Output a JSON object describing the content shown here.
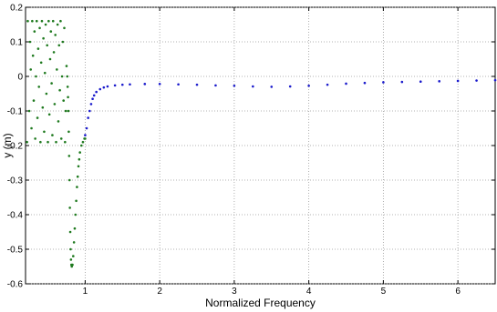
{
  "chart_data": {
    "type": "scatter",
    "title": "",
    "xlabel": "Normalized Frequency",
    "ylabel": "y (m)",
    "xlim": [
      0.2,
      6.5
    ],
    "ylim": [
      -0.6,
      0.2
    ],
    "xticks": [
      1,
      2,
      3,
      4,
      5,
      6
    ],
    "xtick_labels": [
      "1",
      "2",
      "3",
      "4",
      "5",
      "6"
    ],
    "yticks": [
      0.2,
      0.1,
      0,
      -0.1,
      -0.2,
      -0.3,
      -0.4,
      -0.5,
      -0.6
    ],
    "ytick_labels": [
      "0.2",
      "0.1",
      "0",
      "-0.1",
      "-0.2",
      "-0.3",
      "-0.4",
      "-0.5",
      "-0.6"
    ],
    "grid": true,
    "legend": "none",
    "series": [
      {
        "color": "#1f7a1f",
        "description": "green markers (low-frequency chaotic band and resonance dip)",
        "points": [
          [
            0.22,
            -0.19
          ],
          [
            0.23,
            0.16
          ],
          [
            0.25,
            -0.1
          ],
          [
            0.26,
            0.1
          ],
          [
            0.27,
            0.02
          ],
          [
            0.28,
            -0.15
          ],
          [
            0.29,
            0.16
          ],
          [
            0.3,
            0.06
          ],
          [
            0.31,
            -0.07
          ],
          [
            0.32,
            0.13
          ],
          [
            0.33,
            -0.18
          ],
          [
            0.34,
            0.0
          ],
          [
            0.35,
            0.16
          ],
          [
            0.36,
            -0.12
          ],
          [
            0.37,
            0.08
          ],
          [
            0.38,
            -0.03
          ],
          [
            0.39,
            0.14
          ],
          [
            0.4,
            -0.19
          ],
          [
            0.41,
            0.04
          ],
          [
            0.42,
            0.16
          ],
          [
            0.43,
            -0.09
          ],
          [
            0.44,
            0.11
          ],
          [
            0.45,
            -0.16
          ],
          [
            0.46,
            0.01
          ],
          [
            0.47,
            0.15
          ],
          [
            0.48,
            -0.05
          ],
          [
            0.49,
            0.09
          ],
          [
            0.5,
            -0.19
          ],
          [
            0.51,
            0.16
          ],
          [
            0.52,
            -0.11
          ],
          [
            0.53,
            0.05
          ],
          [
            0.54,
            0.13
          ],
          [
            0.55,
            -0.02
          ],
          [
            0.56,
            -0.17
          ],
          [
            0.57,
            0.16
          ],
          [
            0.58,
            0.07
          ],
          [
            0.59,
            -0.08
          ],
          [
            0.6,
            0.12
          ],
          [
            0.61,
            -0.19
          ],
          [
            0.62,
            0.02
          ],
          [
            0.63,
            0.15
          ],
          [
            0.64,
            -0.13
          ],
          [
            0.65,
            0.09
          ],
          [
            0.66,
            -0.04
          ],
          [
            0.67,
            0.16
          ],
          [
            0.68,
            -0.18
          ],
          [
            0.69,
            0.0
          ],
          [
            0.7,
            0.1
          ],
          [
            0.71,
            -0.07
          ],
          [
            0.72,
            0.14
          ],
          [
            0.73,
            -0.19
          ],
          [
            0.74,
            -0.1
          ],
          [
            0.75,
            0.03
          ],
          [
            0.76,
            0.0
          ],
          [
            0.765,
            -0.03
          ],
          [
            0.77,
            -0.06
          ],
          [
            0.775,
            -0.1
          ],
          [
            0.78,
            -0.16
          ],
          [
            0.785,
            -0.23
          ],
          [
            0.79,
            -0.3
          ],
          [
            0.795,
            -0.38
          ],
          [
            0.8,
            -0.45
          ],
          [
            0.805,
            -0.5
          ],
          [
            0.81,
            -0.53
          ],
          [
            0.815,
            -0.545
          ],
          [
            0.82,
            -0.55
          ],
          [
            0.83,
            -0.545
          ],
          [
            0.84,
            -0.52
          ],
          [
            0.85,
            -0.48
          ],
          [
            0.86,
            -0.44
          ],
          [
            0.87,
            -0.4
          ],
          [
            0.88,
            -0.36
          ],
          [
            0.89,
            -0.32
          ],
          [
            0.9,
            -0.29
          ],
          [
            0.91,
            -0.26
          ],
          [
            0.92,
            -0.24
          ],
          [
            0.93,
            -0.22
          ],
          [
            0.95,
            -0.2
          ],
          [
            0.97,
            -0.19
          ],
          [
            0.99,
            -0.18
          ],
          [
            1.0,
            -0.18
          ]
        ]
      },
      {
        "color": "#1a1acc",
        "description": "blue markers (high-frequency branch)",
        "points": [
          [
            1.0,
            -0.17
          ],
          [
            1.02,
            -0.15
          ],
          [
            1.04,
            -0.12
          ],
          [
            1.06,
            -0.1
          ],
          [
            1.08,
            -0.08
          ],
          [
            1.1,
            -0.065
          ],
          [
            1.12,
            -0.055
          ],
          [
            1.15,
            -0.045
          ],
          [
            1.2,
            -0.037
          ],
          [
            1.25,
            -0.032
          ],
          [
            1.3,
            -0.029
          ],
          [
            1.4,
            -0.026
          ],
          [
            1.5,
            -0.024
          ],
          [
            1.6,
            -0.023
          ],
          [
            1.8,
            -0.022
          ],
          [
            2.0,
            -0.022
          ],
          [
            2.25,
            -0.023
          ],
          [
            2.5,
            -0.024
          ],
          [
            2.75,
            -0.026
          ],
          [
            3.0,
            -0.027
          ],
          [
            3.25,
            -0.029
          ],
          [
            3.5,
            -0.03
          ],
          [
            3.75,
            -0.029
          ],
          [
            4.0,
            -0.027
          ],
          [
            4.25,
            -0.024
          ],
          [
            4.5,
            -0.021
          ],
          [
            4.75,
            -0.019
          ],
          [
            5.0,
            -0.017
          ],
          [
            5.25,
            -0.016
          ],
          [
            5.5,
            -0.015
          ],
          [
            5.75,
            -0.014
          ],
          [
            6.0,
            -0.013
          ],
          [
            6.25,
            -0.012
          ],
          [
            6.5,
            -0.011
          ]
        ]
      }
    ]
  }
}
